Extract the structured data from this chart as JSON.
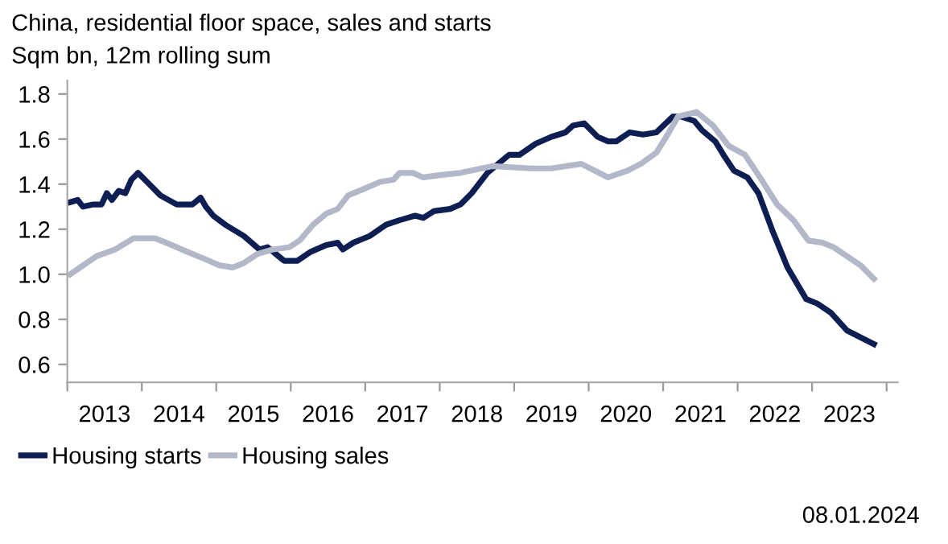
{
  "chart_data": {
    "type": "line",
    "title": "China, residential floor space, sales and starts",
    "subtitle": "Sqm bn, 12m rolling sum",
    "annotations": [
      "08.01.2024"
    ],
    "xlim": [
      2013,
      2024.15
    ],
    "ylim": [
      0.52,
      1.86
    ],
    "xticks": [
      {
        "value": 2013,
        "label": null
      },
      {
        "value": 2013.5,
        "label": "2013"
      },
      {
        "value": 2014,
        "label": null
      },
      {
        "value": 2014.5,
        "label": "2014"
      },
      {
        "value": 2015,
        "label": null
      },
      {
        "value": 2015.5,
        "label": "2015"
      },
      {
        "value": 2016,
        "label": null
      },
      {
        "value": 2016.5,
        "label": "2016"
      },
      {
        "value": 2017,
        "label": null
      },
      {
        "value": 2017.5,
        "label": "2017"
      },
      {
        "value": 2018,
        "label": null
      },
      {
        "value": 2018.5,
        "label": "2018"
      },
      {
        "value": 2019,
        "label": null
      },
      {
        "value": 2019.5,
        "label": "2019"
      },
      {
        "value": 2020,
        "label": null
      },
      {
        "value": 2020.5,
        "label": "2020"
      },
      {
        "value": 2021,
        "label": null
      },
      {
        "value": 2021.5,
        "label": "2021"
      },
      {
        "value": 2022,
        "label": null
      },
      {
        "value": 2022.5,
        "label": "2022"
      },
      {
        "value": 2023,
        "label": null
      },
      {
        "value": 2023.5,
        "label": "2023"
      },
      {
        "value": 2024,
        "label": null
      }
    ],
    "yticks": [
      0.6,
      0.8,
      {
        "value": 1.0,
        "label": "1.0"
      },
      1.2,
      1.4,
      1.6,
      1.8
    ],
    "grid": false,
    "legend": "bottom left",
    "marker": "none",
    "line_style": "solid",
    "series": [
      {
        "name": "Housing starts",
        "color": "#0d1f52",
        "x": [
          2013.04,
          2013.14,
          2013.21,
          2013.35,
          2013.46,
          2013.53,
          2013.6,
          2013.69,
          2013.78,
          2013.86,
          2013.95,
          2014.07,
          2014.25,
          2014.47,
          2014.68,
          2014.79,
          2014.86,
          2014.96,
          2015.12,
          2015.37,
          2015.58,
          2015.69,
          2015.8,
          2015.91,
          2016.09,
          2016.27,
          2016.48,
          2016.63,
          2016.7,
          2016.84,
          2017.06,
          2017.28,
          2017.46,
          2017.67,
          2017.78,
          2017.92,
          2018.14,
          2018.28,
          2018.43,
          2018.64,
          2018.93,
          2019.07,
          2019.29,
          2019.5,
          2019.69,
          2019.79,
          2019.94,
          2020.12,
          2020.26,
          2020.37,
          2020.55,
          2020.73,
          2020.91,
          2021.13,
          2021.24,
          2021.42,
          2021.52,
          2021.7,
          2021.81,
          2021.95,
          2022.13,
          2022.28,
          2022.46,
          2022.67,
          2022.92,
          2023.07,
          2023.25,
          2023.47,
          2023.65,
          2023.83
        ],
        "values": [
          1.32,
          1.33,
          1.3,
          1.31,
          1.31,
          1.36,
          1.33,
          1.37,
          1.36,
          1.42,
          1.45,
          1.41,
          1.35,
          1.31,
          1.31,
          1.34,
          1.3,
          1.26,
          1.22,
          1.17,
          1.11,
          1.12,
          1.09,
          1.06,
          1.06,
          1.1,
          1.13,
          1.14,
          1.11,
          1.14,
          1.17,
          1.22,
          1.24,
          1.26,
          1.25,
          1.28,
          1.29,
          1.31,
          1.36,
          1.45,
          1.53,
          1.53,
          1.58,
          1.61,
          1.63,
          1.66,
          1.67,
          1.61,
          1.59,
          1.59,
          1.63,
          1.62,
          1.63,
          1.7,
          1.7,
          1.68,
          1.64,
          1.59,
          1.53,
          1.46,
          1.43,
          1.36,
          1.2,
          1.03,
          0.89,
          0.87,
          0.83,
          0.75,
          0.72,
          0.69
        ]
      },
      {
        "name": "Housing sales",
        "color": "#b3b8c9",
        "x": [
          2013.04,
          2013.17,
          2013.39,
          2013.64,
          2013.89,
          2014.18,
          2014.4,
          2014.61,
          2014.83,
          2015.04,
          2015.22,
          2015.37,
          2015.55,
          2015.76,
          2015.98,
          2016.12,
          2016.3,
          2016.48,
          2016.63,
          2016.77,
          2016.99,
          2017.2,
          2017.38,
          2017.46,
          2017.64,
          2017.78,
          2018.0,
          2018.28,
          2018.56,
          2018.71,
          2019.22,
          2019.5,
          2019.9,
          2020.08,
          2020.26,
          2020.52,
          2020.7,
          2020.91,
          2021.06,
          2021.2,
          2021.45,
          2021.67,
          2021.88,
          2022.1,
          2022.32,
          2022.53,
          2022.75,
          2022.95,
          2023.14,
          2023.29,
          2023.47,
          2023.65,
          2023.83
        ],
        "values": [
          1.0,
          1.03,
          1.08,
          1.11,
          1.16,
          1.16,
          1.13,
          1.1,
          1.07,
          1.04,
          1.03,
          1.05,
          1.09,
          1.11,
          1.12,
          1.15,
          1.22,
          1.27,
          1.29,
          1.35,
          1.38,
          1.41,
          1.42,
          1.45,
          1.45,
          1.43,
          1.44,
          1.45,
          1.47,
          1.48,
          1.47,
          1.47,
          1.49,
          1.46,
          1.43,
          1.46,
          1.49,
          1.54,
          1.62,
          1.7,
          1.72,
          1.66,
          1.57,
          1.53,
          1.42,
          1.31,
          1.24,
          1.15,
          1.14,
          1.12,
          1.08,
          1.04,
          0.98
        ]
      }
    ]
  }
}
